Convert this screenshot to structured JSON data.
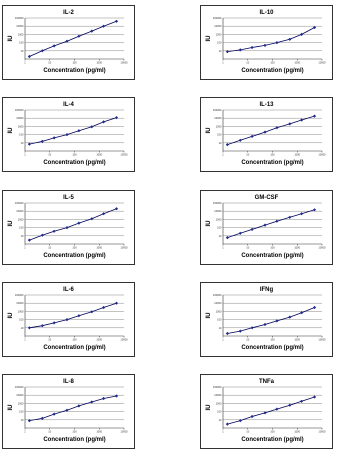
{
  "colors": {
    "line": "#00005a",
    "marker": "#1f2a8a",
    "grid": "#888888",
    "border": "#333333"
  },
  "chart_data": [
    {
      "type": "line",
      "title": "IL-2",
      "xlabel": "Concentration (pg/ml)",
      "ylabel": "IU",
      "log_x": true,
      "log_y": true,
      "x_ticks": [
        "1",
        "10",
        "100",
        "1000",
        "10000"
      ],
      "y_ticks": [
        "10",
        "100",
        "1000",
        "10000",
        "100000"
      ],
      "xlim": [
        1,
        10000
      ],
      "ylim": [
        1,
        100000
      ],
      "series": [
        {
          "x": [
            1.5,
            5,
            15,
            50,
            150,
            500,
            1500,
            5000
          ],
          "y": [
            2,
            10,
            40,
            150,
            600,
            2500,
            10000,
            40000
          ]
        }
      ]
    },
    {
      "type": "line",
      "title": "IL-10",
      "xlabel": "Concentration (pg/ml)",
      "ylabel": "IU",
      "log_x": true,
      "log_y": true,
      "x_ticks": [
        "1",
        "10",
        "100",
        "1000",
        "10000"
      ],
      "y_ticks": [
        "10",
        "100",
        "1000",
        "10000",
        "100000"
      ],
      "xlim": [
        1,
        10000
      ],
      "ylim": [
        1,
        100000
      ],
      "series": [
        {
          "x": [
            1.5,
            5,
            15,
            50,
            150,
            500,
            1500,
            5000
          ],
          "y": [
            8,
            13,
            25,
            45,
            100,
            250,
            1000,
            7000
          ]
        }
      ]
    },
    {
      "type": "line",
      "title": "IL-4",
      "xlabel": "Concentration (pg/ml)",
      "ylabel": "IU",
      "log_x": true,
      "log_y": true,
      "x_ticks": [
        "1",
        "10",
        "100",
        "1000",
        "10000"
      ],
      "y_ticks": [
        "10",
        "100",
        "1000",
        "10000",
        "100000"
      ],
      "xlim": [
        1,
        10000
      ],
      "ylim": [
        1,
        100000
      ],
      "series": [
        {
          "x": [
            1.5,
            5,
            15,
            50,
            150,
            500,
            1500,
            5000
          ],
          "y": [
            7,
            15,
            40,
            100,
            300,
            900,
            3500,
            12000
          ]
        }
      ]
    },
    {
      "type": "line",
      "title": "IL-13",
      "xlabel": "Concentration (pg/ml)",
      "ylabel": "IU",
      "log_x": true,
      "log_y": true,
      "x_ticks": [
        "1",
        "10",
        "100",
        "1000",
        "10000"
      ],
      "y_ticks": [
        "10",
        "100",
        "1000",
        "10000",
        "100000"
      ],
      "xlim": [
        1,
        10000
      ],
      "ylim": [
        1,
        100000
      ],
      "series": [
        {
          "x": [
            1.5,
            5,
            15,
            50,
            150,
            500,
            1500,
            5000
          ],
          "y": [
            6,
            20,
            60,
            200,
            700,
            2000,
            6000,
            18000
          ]
        }
      ]
    },
    {
      "type": "line",
      "title": "IL-5",
      "xlabel": "Concentration (pg/ml)",
      "ylabel": "IU",
      "log_x": true,
      "log_y": true,
      "x_ticks": [
        "1",
        "10",
        "100",
        "1000",
        "10000"
      ],
      "y_ticks": [
        "10",
        "100",
        "1000",
        "10000",
        "100000"
      ],
      "xlim": [
        1,
        10000
      ],
      "ylim": [
        1,
        100000
      ],
      "series": [
        {
          "x": [
            1.5,
            5,
            15,
            50,
            150,
            500,
            1500,
            5000
          ],
          "y": [
            3,
            12,
            35,
            100,
            350,
            1200,
            5000,
            20000
          ]
        }
      ]
    },
    {
      "type": "line",
      "title": "GM-CSF",
      "xlabel": "Concentration (pg/ml)",
      "ylabel": "IU",
      "log_x": true,
      "log_y": true,
      "x_ticks": [
        "1",
        "10",
        "100",
        "1000",
        "10000"
      ],
      "y_ticks": [
        "10",
        "100",
        "1000",
        "10000",
        "100000"
      ],
      "xlim": [
        1,
        10000
      ],
      "ylim": [
        1,
        100000
      ],
      "series": [
        {
          "x": [
            1.5,
            5,
            15,
            50,
            150,
            500,
            1500,
            5000
          ],
          "y": [
            6,
            20,
            60,
            200,
            600,
            1800,
            5000,
            15000
          ]
        }
      ]
    },
    {
      "type": "line",
      "title": "IL-6",
      "xlabel": "Concentration (pg/ml)",
      "ylabel": "IU",
      "log_x": true,
      "log_y": true,
      "x_ticks": [
        "1",
        "10",
        "100",
        "1000",
        "10000"
      ],
      "y_ticks": [
        "10",
        "100",
        "1000",
        "10000",
        "100000"
      ],
      "xlim": [
        1,
        10000
      ],
      "ylim": [
        1,
        100000
      ],
      "series": [
        {
          "x": [
            1.5,
            5,
            15,
            50,
            150,
            500,
            1500,
            5000
          ],
          "y": [
            10,
            18,
            40,
            100,
            300,
            900,
            3000,
            10000
          ]
        }
      ]
    },
    {
      "type": "line",
      "title": "IFNg",
      "xlabel": "Concentration (pg/ml)",
      "ylabel": "IU",
      "log_x": true,
      "log_y": true,
      "x_ticks": [
        "1",
        "10",
        "100",
        "1000",
        "10000"
      ],
      "y_ticks": [
        "10",
        "100",
        "1000",
        "10000",
        "100000"
      ],
      "xlim": [
        1,
        10000
      ],
      "ylim": [
        1,
        100000
      ],
      "series": [
        {
          "x": [
            1.5,
            5,
            15,
            50,
            150,
            500,
            1500,
            5000
          ],
          "y": [
            2,
            4,
            10,
            25,
            70,
            200,
            700,
            3000
          ]
        }
      ]
    },
    {
      "type": "line",
      "title": "IL-8",
      "xlabel": "Concentration (pg/ml)",
      "ylabel": "IU",
      "log_x": true,
      "log_y": true,
      "x_ticks": [
        "1",
        "10",
        "100",
        "1000",
        "10000"
      ],
      "y_ticks": [
        "10",
        "100",
        "1000",
        "10000",
        "100000"
      ],
      "xlim": [
        1,
        10000
      ],
      "ylim": [
        1,
        100000
      ],
      "series": [
        {
          "x": [
            1.5,
            5,
            15,
            50,
            150,
            500,
            1500,
            5000
          ],
          "y": [
            8,
            15,
            50,
            150,
            500,
            1500,
            4000,
            8000
          ]
        }
      ]
    },
    {
      "type": "line",
      "title": "TNFa",
      "xlabel": "Concentration (pg/ml)",
      "ylabel": "IU",
      "log_x": true,
      "log_y": true,
      "x_ticks": [
        "1",
        "10",
        "100",
        "1000",
        "10000"
      ],
      "y_ticks": [
        "10",
        "100",
        "1000",
        "10000",
        "100000"
      ],
      "xlim": [
        1,
        10000
      ],
      "ylim": [
        1,
        100000
      ],
      "series": [
        {
          "x": [
            1.5,
            5,
            15,
            50,
            150,
            500,
            1500,
            5000
          ],
          "y": [
            3,
            8,
            25,
            70,
            200,
            600,
            1800,
            6000
          ]
        }
      ]
    }
  ]
}
